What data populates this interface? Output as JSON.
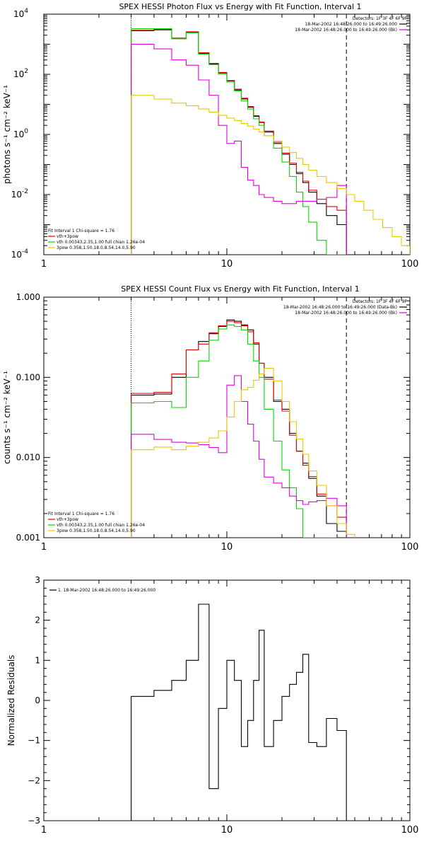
{
  "colors": {
    "black": "#000000",
    "red": "#e00000",
    "green": "#00d800",
    "magenta": "#e000e0",
    "yellow": "#e8c800",
    "orange_line": "#e07000"
  },
  "chart_data": [
    {
      "id": "photon",
      "type": "line",
      "step": true,
      "title": "SPEX HESSI Photon Flux vs Energy with Fit Function, Interval 1",
      "ylabel": "photons s⁻¹ cm⁻² keV⁻¹",
      "xlabel": "",
      "xscale": "log",
      "yscale": "log",
      "xlim": [
        1,
        100
      ],
      "ylim": [
        0.0001,
        10000
      ],
      "xticks": [
        {
          "v": 1,
          "label": "1"
        },
        {
          "v": 10,
          "label": "10"
        },
        {
          "v": 100,
          "label": "100"
        }
      ],
      "yticks": [
        {
          "v": 0.0001,
          "base": "10",
          "exp": "-4"
        },
        {
          "v": 0.01,
          "base": "10",
          "exp": "-2"
        },
        {
          "v": 1,
          "base": "10",
          "exp": "0"
        },
        {
          "v": 100,
          "base": "10",
          "exp": "2"
        },
        {
          "v": 10000,
          "base": "10",
          "exp": "4"
        }
      ],
      "vlines": [
        {
          "x": 3,
          "style": "dotted"
        },
        {
          "x": 45,
          "style": "dashed"
        }
      ],
      "legend_tr": {
        "position": "top-right",
        "lines": [
          {
            "text": "Detectors: 1F 3F 4F 6F 9F",
            "color": "",
            "swatch": false
          },
          {
            "text": "18-Mar-2002 16:48:26.000 to 16:49:26.000",
            "color": "black",
            "swatch": true
          },
          {
            "text": "18-Mar-2002 16:48:26.000 to 16:49:26.000 (Bk)",
            "color": "magenta",
            "swatch": true
          }
        ]
      },
      "legend_bl": {
        "position": "bottom-left",
        "lines": [
          {
            "text": "Fit Interval 1    Chi-square = 1.76",
            "color": "",
            "swatch": false
          },
          {
            "text": "vth+3pow",
            "color": "red",
            "swatch": true
          },
          {
            "text": "vth 0.00343,2.35,1.00  full chian 1.26e-04",
            "color": "green",
            "swatch": true
          },
          {
            "text": "3pow 0.358,1.50,18.0,8.54,14.0,5.90",
            "color": "yellow",
            "swatch": true
          }
        ]
      },
      "series": [
        {
          "color": "black",
          "edges": [
            3,
            4,
            5,
            6,
            7,
            8,
            9,
            10,
            11,
            12,
            13,
            14,
            15,
            16,
            18,
            20,
            22,
            24,
            26,
            28,
            31,
            35,
            40,
            45
          ],
          "values": [
            2800,
            3000,
            1500,
            2500,
            500,
            220,
            110,
            60,
            30,
            15,
            8,
            4,
            2.5,
            1.2,
            0.5,
            0.22,
            0.1,
            0.05,
            0.025,
            0.012,
            0.005,
            0.002,
            0.001
          ]
        },
        {
          "color": "red",
          "edges": [
            3,
            4,
            5,
            6,
            7,
            8,
            9,
            10,
            11,
            12,
            13,
            14,
            15,
            16,
            18,
            20,
            22,
            24,
            26,
            28,
            31,
            35,
            40,
            45
          ],
          "values": [
            2900,
            3100,
            1600,
            2600,
            520,
            230,
            115,
            62,
            32,
            16,
            8.5,
            4.2,
            2.6,
            1.3,
            0.55,
            0.24,
            0.11,
            0.055,
            0.028,
            0.014,
            0.007,
            0.004,
            0.003
          ]
        },
        {
          "color": "green",
          "edges": [
            3,
            4,
            5,
            6,
            7,
            8,
            9,
            10,
            11,
            12,
            13,
            14,
            15,
            16,
            18,
            20,
            22,
            24,
            26,
            28,
            31,
            35,
            40,
            45
          ],
          "values": [
            3300,
            3300,
            1500,
            2400,
            470,
            210,
            100,
            55,
            28,
            13,
            7,
            3.3,
            2,
            0.9,
            0.35,
            0.12,
            0.04,
            0.012,
            0.004,
            0.0012,
            0.0003,
            0.0001,
            0.0001
          ]
        },
        {
          "color": "magenta",
          "edges": [
            3,
            4,
            5,
            6,
            7,
            8,
            9,
            10,
            11,
            12,
            13,
            14,
            15,
            16,
            18,
            20,
            22,
            24,
            26,
            28,
            31,
            35,
            40,
            45
          ],
          "values": [
            1000,
            700,
            300,
            200,
            65,
            20,
            2,
            0.5,
            0.6,
            0.08,
            0.03,
            0.02,
            0.01,
            0.008,
            0.006,
            0.005,
            0.005,
            0.006,
            0.006,
            0.006,
            0.007,
            0.008,
            0.02
          ]
        },
        {
          "color": "yellow",
          "edges": [
            3,
            4,
            5,
            6,
            7,
            8,
            9,
            10,
            11,
            12,
            13,
            14,
            15,
            16,
            18,
            20,
            22,
            24,
            26,
            28,
            31,
            35,
            40,
            45,
            50,
            56,
            63,
            71,
            80,
            90,
            100
          ],
          "values": [
            20,
            15,
            11,
            9,
            7,
            5.5,
            4.3,
            3.5,
            2.9,
            2.3,
            1.9,
            1.5,
            1.2,
            0.9,
            0.6,
            0.38,
            0.25,
            0.16,
            0.1,
            0.065,
            0.04,
            0.025,
            0.016,
            0.01,
            0.006,
            0.003,
            0.0015,
            0.0008,
            0.0004,
            0.0002
          ]
        }
      ]
    },
    {
      "id": "count",
      "type": "line",
      "step": true,
      "title": "SPEX HESSI Count Flux vs Energy with Fit Function, Interval 1",
      "ylabel": "counts s⁻¹ cm⁻² keV⁻¹",
      "xlabel": "",
      "xscale": "log",
      "yscale": "log",
      "xlim": [
        1,
        100
      ],
      "ylim": [
        0.001,
        1
      ],
      "xticks": [
        {
          "v": 1,
          "label": "1"
        },
        {
          "v": 10,
          "label": "10"
        },
        {
          "v": 100,
          "label": "100"
        }
      ],
      "yticks": [
        {
          "v": 0.001,
          "label": "0.001"
        },
        {
          "v": 0.01,
          "label": "0.010"
        },
        {
          "v": 0.1,
          "label": "0.100"
        },
        {
          "v": 1,
          "label": "1.000"
        }
      ],
      "vlines": [
        {
          "x": 3,
          "style": "dotted"
        },
        {
          "x": 45,
          "style": "dashed"
        }
      ],
      "legend_tr": {
        "position": "top-right",
        "lines": [
          {
            "text": "Detectors: 1F 3F 4F 6F 9F",
            "color": "",
            "swatch": false
          },
          {
            "text": "18-Mar-2002 16:48:26.000 to 16:49:26.000 (Data-Bk)",
            "color": "black",
            "swatch": true
          },
          {
            "text": "18-Mar-2002 16:48:26.000 to 16:49:26.000 (Bk)",
            "color": "magenta",
            "swatch": true
          }
        ]
      },
      "legend_bl": {
        "position": "bottom-left",
        "lines": [
          {
            "text": "Fit Interval 1    Chi-square = 1.76",
            "color": "",
            "swatch": false
          },
          {
            "text": "vth+3pow",
            "color": "red",
            "swatch": true
          },
          {
            "text": "vth 0.00343,2.35,1.00  full chian 1.26e-04",
            "color": "green",
            "swatch": true
          },
          {
            "text": "3pow 0.358,1.50,18.0,8.54,14.0,5.90",
            "color": "yellow",
            "swatch": true
          }
        ]
      },
      "series": [
        {
          "color": "black",
          "edges": [
            3,
            4,
            5,
            6,
            7,
            8,
            9,
            10,
            11,
            12,
            13,
            14,
            15,
            16,
            18,
            20,
            22,
            24,
            26,
            28,
            31,
            35,
            40,
            45,
            50
          ],
          "values": [
            0.06,
            0.062,
            0.1,
            0.22,
            0.28,
            0.35,
            0.43,
            0.52,
            0.5,
            0.45,
            0.39,
            0.26,
            0.15,
            0.1,
            0.05,
            0.04,
            0.02,
            0.012,
            0.0085,
            0.0055,
            0.0033,
            0.0015,
            0.0012,
            0.001
          ]
        },
        {
          "color": "red",
          "edges": [
            3,
            4,
            5,
            6,
            7,
            8,
            9,
            10,
            11,
            12,
            13,
            14,
            15,
            16,
            18,
            20,
            22,
            24,
            26,
            28,
            31,
            35,
            40,
            45
          ],
          "values": [
            0.063,
            0.065,
            0.11,
            0.22,
            0.26,
            0.36,
            0.44,
            0.5,
            0.48,
            0.44,
            0.37,
            0.27,
            0.15,
            0.095,
            0.052,
            0.038,
            0.019,
            0.012,
            0.008,
            0.0058,
            0.0035,
            0.0025,
            0.0018
          ]
        },
        {
          "color": "green",
          "edges": [
            3,
            4,
            5,
            6,
            7,
            8,
            9,
            10,
            11,
            12,
            13,
            14,
            15,
            16,
            18,
            20,
            22,
            24,
            26,
            28,
            31,
            35,
            40
          ],
          "values": [
            0.048,
            0.05,
            0.042,
            0.1,
            0.16,
            0.29,
            0.4,
            0.45,
            0.43,
            0.39,
            0.26,
            0.16,
            0.1,
            0.04,
            0.016,
            0.007,
            0.0042,
            0.0023,
            0.001,
            0.001,
            0.001,
            0.001
          ]
        },
        {
          "color": "magenta",
          "edges": [
            3,
            4,
            5,
            6,
            7,
            8,
            9,
            10,
            11,
            12,
            13,
            14,
            15,
            16,
            18,
            20,
            22,
            24,
            26,
            28,
            31,
            35,
            40,
            45
          ],
          "values": [
            0.0195,
            0.0168,
            0.0155,
            0.0152,
            0.0145,
            0.0133,
            0.0115,
            0.08,
            0.105,
            0.05,
            0.026,
            0.016,
            0.0095,
            0.0057,
            0.0048,
            0.0042,
            0.0033,
            0.0029,
            0.0026,
            0.0028,
            0.0029,
            0.0031,
            0.0025
          ]
        },
        {
          "color": "yellow",
          "edges": [
            3,
            4,
            5,
            6,
            7,
            8,
            9,
            10,
            11,
            12,
            13,
            14,
            15,
            16,
            18,
            20,
            22,
            24,
            26,
            28,
            31,
            35,
            40,
            45,
            50
          ],
          "values": [
            0.0125,
            0.0135,
            0.0125,
            0.0138,
            0.0155,
            0.0175,
            0.0215,
            0.032,
            0.05,
            0.07,
            0.075,
            0.092,
            0.11,
            0.13,
            0.09,
            0.05,
            0.028,
            0.017,
            0.011,
            0.0068,
            0.0045,
            0.0025,
            0.0015,
            0.0011
          ]
        }
      ]
    },
    {
      "id": "residuals",
      "type": "line",
      "step": true,
      "title": "",
      "ylabel": "Normalized Residuals",
      "xlabel": "",
      "xscale": "log",
      "yscale": "linear",
      "xlim": [
        1,
        100
      ],
      "ylim": [
        -3,
        3
      ],
      "xticks": [
        {
          "v": 1,
          "label": "1"
        },
        {
          "v": 10,
          "label": "10"
        },
        {
          "v": 100,
          "label": "100"
        }
      ],
      "yticks": [
        {
          "v": -3,
          "label": "−3"
        },
        {
          "v": -2,
          "label": "−2"
        },
        {
          "v": -1,
          "label": "−1"
        },
        {
          "v": 0,
          "label": "0"
        },
        {
          "v": 1,
          "label": "1"
        },
        {
          "v": 2,
          "label": "2"
        },
        {
          "v": 3,
          "label": "3"
        }
      ],
      "vlines": [],
      "legend_tl": {
        "position": "top-left",
        "lines": [
          {
            "text": "1. 18-Mar-2002 16:48:26.000 to 16:49:26.000",
            "color": "black",
            "swatch": true
          }
        ]
      },
      "series": [
        {
          "color": "black",
          "edges": [
            3,
            4,
            5,
            6,
            7,
            8,
            9,
            10,
            11,
            12,
            13,
            14,
            15,
            16,
            18,
            20,
            22,
            24,
            26,
            28,
            31,
            35,
            40,
            45
          ],
          "values": [
            0.1,
            0.25,
            0.5,
            1.0,
            2.4,
            -2.2,
            -0.2,
            1.0,
            0.5,
            -1.15,
            -0.5,
            0.5,
            1.75,
            -1.15,
            -0.5,
            0.1,
            0.4,
            0.7,
            1.15,
            -1.05,
            -1.15,
            -0.45,
            -0.75
          ],
          "drop_to_floor": true
        }
      ]
    }
  ]
}
